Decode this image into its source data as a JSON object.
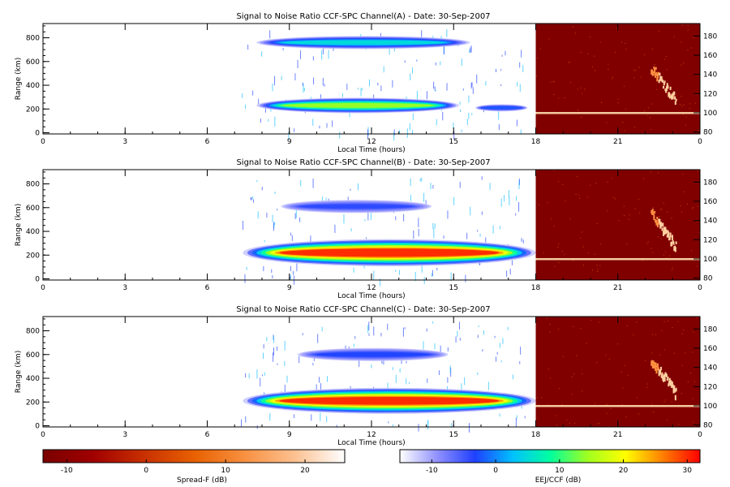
{
  "chart_data": [
    {
      "type": "heatmap",
      "title": "Signal to Noise Ratio CCF-SPC Channel(A) - Date: 30-Sep-2007",
      "xlabel": "Local Time (hours)",
      "ylabel": "Range (km)",
      "xlim": [
        0,
        24
      ],
      "ylim": [
        -10,
        920
      ],
      "y2lim": [
        78,
        193
      ],
      "xticks": [
        "0",
        "3",
        "6",
        "9",
        "12",
        "15",
        "18",
        "21",
        "0"
      ],
      "yticks": [
        "0",
        "200",
        "400",
        "600",
        "800"
      ],
      "y2ticks": [
        "80",
        "100",
        "120",
        "140",
        "160",
        "180"
      ],
      "regions": [
        {
          "name": "upper",
          "t_start": 7.8,
          "t_end": 15.6,
          "center_range": 760,
          "thickness": 110,
          "peak_db": 5,
          "profile": [
            0.5,
            0.8,
            1.0,
            1.0,
            0.95,
            0.9,
            0.7,
            0.4
          ]
        },
        {
          "name": "lower",
          "t_start": 7.8,
          "t_end": 15.2,
          "center_range": 230,
          "thickness": 130,
          "peak_db": 14,
          "profile": [
            0.4,
            0.7,
            0.9,
            1.0,
            1.0,
            0.9,
            0.7,
            0.5
          ]
        },
        {
          "name": "tail",
          "t_start": 15.8,
          "t_end": 17.7,
          "center_range": 210,
          "thickness": 60,
          "peak_db": -2
        }
      ]
    },
    {
      "type": "heatmap",
      "title": "Signal to Noise Ratio CCF-SPC Channel(B) - Date: 30-Sep-2007",
      "xlabel": "Local Time (hours)",
      "ylabel": "Range (km)",
      "xlim": [
        0,
        24
      ],
      "ylim": [
        -10,
        920
      ],
      "y2lim": [
        78,
        193
      ],
      "xticks": [
        "0",
        "3",
        "6",
        "9",
        "12",
        "15",
        "18",
        "21",
        "0"
      ],
      "yticks": [
        "0",
        "200",
        "400",
        "600",
        "800"
      ],
      "y2ticks": [
        "80",
        "100",
        "120",
        "140",
        "160",
        "180"
      ],
      "regions": [
        {
          "name": "upper",
          "t_start": 8.7,
          "t_end": 14.2,
          "center_range": 610,
          "thickness": 110,
          "peak_db": -4
        },
        {
          "name": "lower",
          "t_start": 7.3,
          "t_end": 18.0,
          "center_range": 220,
          "thickness": 230,
          "peak_db": 30
        }
      ]
    },
    {
      "type": "heatmap",
      "title": "Signal to Noise Ratio CCF-SPC Channel(C) - Date: 30-Sep-2007",
      "xlabel": "Local Time (hours)",
      "ylabel": "Range (km)",
      "xlim": [
        0,
        24
      ],
      "ylim": [
        -10,
        920
      ],
      "y2lim": [
        78,
        193
      ],
      "xticks": [
        "0",
        "3",
        "6",
        "9",
        "12",
        "15",
        "18",
        "21",
        "0"
      ],
      "yticks": [
        "0",
        "200",
        "400",
        "600",
        "800"
      ],
      "y2ticks": [
        "80",
        "100",
        "120",
        "140",
        "160",
        "180"
      ],
      "regions": [
        {
          "name": "upper",
          "t_start": 9.3,
          "t_end": 14.8,
          "center_range": 600,
          "thickness": 110,
          "peak_db": -3
        },
        {
          "name": "lower",
          "t_start": 7.3,
          "t_end": 18.0,
          "center_range": 210,
          "thickness": 220,
          "peak_db": 30
        }
      ]
    }
  ],
  "spreadf_panel": {
    "x_start_hours": 18,
    "x_end_hours": 24,
    "background_db": -12,
    "line_range": 100
  },
  "colorbars": [
    {
      "name": "spread-f-colorbar",
      "label": "Spread-F (dB)",
      "vmin": -13,
      "vmax": 25,
      "ticks": [
        "-10",
        "0",
        "10",
        "20"
      ],
      "colors": [
        "#7a0000",
        "#a00000",
        "#c83000",
        "#e86000",
        "#f89040",
        "#fcc090",
        "#ffffff"
      ]
    },
    {
      "name": "eej-ccf-colorbar",
      "label": "EEJ/CCF (dB)",
      "vmin": -15,
      "vmax": 32,
      "ticks": [
        "-10",
        "0",
        "10",
        "20",
        "30"
      ],
      "colors": [
        "#ffffff",
        "#9090ff",
        "#2040ff",
        "#00c0ff",
        "#00ffa0",
        "#a0ff20",
        "#ffff00",
        "#ff8000",
        "#ff0000"
      ]
    }
  ]
}
